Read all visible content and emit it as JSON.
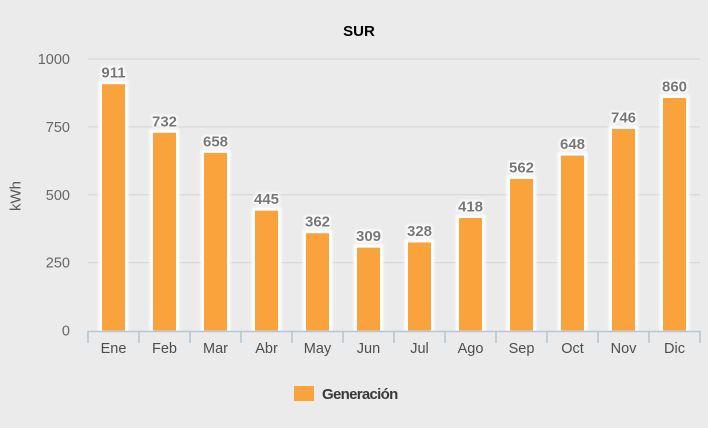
{
  "chart_data": {
    "type": "bar",
    "title": "SUR",
    "ylabel": "kWh",
    "categories": [
      "Ene",
      "Feb",
      "Mar",
      "Abr",
      "May",
      "Jun",
      "Jul",
      "Ago",
      "Sep",
      "Oct",
      "Nov",
      "Dic"
    ],
    "series": [
      {
        "name": "Generación",
        "values": [
          911,
          732,
          658,
          445,
          362,
          309,
          328,
          418,
          562,
          648,
          746,
          860
        ],
        "color": "#FAA33C"
      }
    ],
    "ylim": [
      0,
      1000
    ],
    "yticks": [
      0,
      250,
      500,
      750,
      1000
    ],
    "grid": true,
    "data_labels": true,
    "legend_position": "bottom",
    "colors": {
      "background": "#EBEBEB",
      "gridline": "#D8D8D8",
      "axis_line": "#B5C6D6",
      "bar": "#FAA33C",
      "bar_border": "#FFFFFF",
      "data_label": "#757575",
      "y_tick_label": "#666666",
      "category_label": "#4D4D4D",
      "title": "#000000",
      "legend_text": "#3A3A3A",
      "y_axis_title": "#5A5A5A"
    }
  }
}
